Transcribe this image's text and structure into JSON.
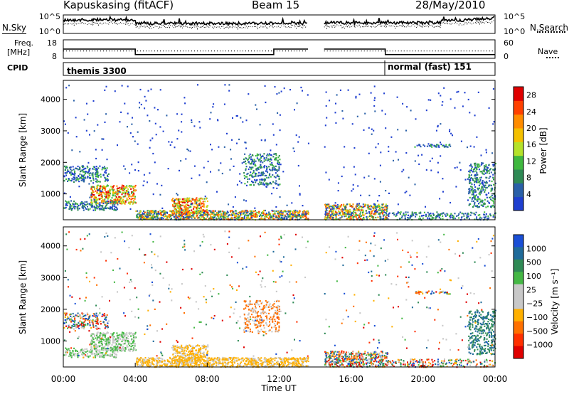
{
  "header": {
    "station": "Kapuskasing (fitACF)",
    "beam": "Beam 15",
    "date": "28/May/2010"
  },
  "left_labels": {
    "nsky": "N.Sky",
    "freq": "Freq.",
    "freq_unit": "[MHz]",
    "cpid": "CPID"
  },
  "right_labels": {
    "nsearch": "N.Search",
    "nave": "Nave"
  },
  "cpid_labels": [
    "themis 3300",
    "normal (fast) 151"
  ],
  "colors": {
    "frame": "#000000",
    "power_scale": [
      "#1f3fd0",
      "#2a60a8",
      "#2f8a55",
      "#3fb83f",
      "#b5e22a",
      "#f4c000",
      "#ff8c00",
      "#ff4000",
      "#e00000"
    ],
    "velocity_scale": [
      "#1a4fd6",
      "#206b9a",
      "#2f8a55",
      "#45b845",
      "#c8c8c8",
      "#c8c8c8",
      "#ffb000",
      "#ff7000",
      "#ff3000",
      "#e00000"
    ]
  },
  "chart_data": [
    {
      "type": "line",
      "panel": "noise",
      "y_ticks": [
        "10^5",
        "10^0"
      ],
      "right_ticks": [
        "10^5",
        "10^0"
      ],
      "xlim": [
        0,
        24
      ],
      "gaps": [
        [
          13.6,
          14.5
        ]
      ]
    },
    {
      "type": "line",
      "panel": "frequency",
      "y_ticks": [
        "18",
        "8"
      ],
      "right_ticks": [
        "60",
        "0"
      ],
      "xlim": [
        0,
        24
      ],
      "series": [
        {
          "name": "Freq.",
          "x": [
            0,
            4,
            4,
            11.7,
            11.7,
            13.6,
            14.5,
            17.9,
            17.9,
            21.7,
            21.7,
            24
          ],
          "y": [
            13,
            13,
            10,
            10,
            13,
            13,
            13,
            13,
            10,
            10,
            10,
            10
          ]
        },
        {
          "name": "Nave",
          "x": [
            0,
            24
          ],
          "y": [
            12,
            12
          ]
        }
      ]
    },
    {
      "type": "heatmap",
      "panel": "power",
      "title": "",
      "xlabel": "",
      "ylabel": "Slant Range [km]",
      "xlim": [
        0,
        24
      ],
      "ylim": [
        180,
        4600
      ],
      "y_ticks": [
        1000,
        2000,
        3000,
        4000
      ],
      "colorbar_label": "Power [dB]",
      "colorbar_ticks": [
        4,
        8,
        12,
        16,
        20,
        24,
        28
      ],
      "colorbar_range": [
        0,
        30
      ]
    },
    {
      "type": "heatmap",
      "panel": "velocity",
      "title": "",
      "xlabel": "Time UT",
      "ylabel": "Slant Range [km]",
      "xlim": [
        0,
        24
      ],
      "ylim": [
        180,
        4600
      ],
      "y_ticks": [
        1000,
        2000,
        3000,
        4000
      ],
      "x_tick_labels": [
        "00:00",
        "04:00",
        "08:00",
        "12:00",
        "16:00",
        "20:00",
        "00:00"
      ],
      "x_tick_values": [
        0,
        4,
        8,
        12,
        16,
        20,
        24
      ],
      "colorbar_label": "Velocity [m s⁻¹]",
      "colorbar_ticks": [
        "1000",
        "500",
        "100",
        "25",
        "−25",
        "−100",
        "−500",
        "−1000"
      ]
    }
  ]
}
